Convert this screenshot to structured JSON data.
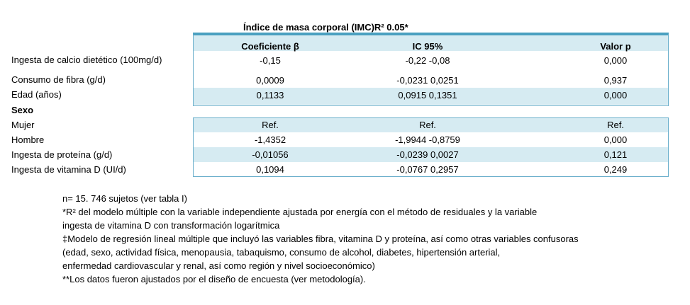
{
  "title": "Índice de masa corporal (IMC)R² 0.05*",
  "headers": [
    "Coeficiente β",
    "IC 95%",
    "Valor p"
  ],
  "rows": [
    {
      "label": "Ingesta de calcio dietético (100mg/d)",
      "coef": "-0,15",
      "ic": "-0,22 -0,08",
      "p": "0,000"
    },
    {
      "label": "Consumo de fibra (g/d)",
      "coef": "0,0009",
      "ic": "-0,0231 0,0251",
      "p": "0,937"
    },
    {
      "label": "Edad (años)",
      "coef": "0,1133",
      "ic": "0,0915 0,1351",
      "p": "0,000"
    },
    {
      "label": "Sexo"
    },
    {
      "label": "Mujer",
      "coef": "Ref.",
      "ic": "Ref.",
      "p": "Ref."
    },
    {
      "label": "Hombre",
      "coef": "-1,4352",
      "ic": "-1,9944 -0,8759",
      "p": "0,000"
    },
    {
      "label": "Ingesta de proteína (g/d)",
      "coef": "-0,01056",
      "ic": "-0,0239 0,0027",
      "p": "0,121"
    },
    {
      "label": "Ingesta de vitamina D (UI/d)",
      "coef": "0,1094",
      "ic": "-0,0767 0,2957",
      "p": "0,249"
    }
  ],
  "notes": [
    "n= 15. 746 sujetos (ver tabla I)",
    "*R² del modelo múltiple con la variable independiente ajustada por energía con el método de residuales y la variable",
    "ingesta de vitamina D con transformación logarítmica",
    "‡Modelo de regresión lineal múltiple que incluyó las variables fibra, vitamina D y proteína, así como otras variables confusoras",
    "(edad, sexo, actividad física, menopausia, tabaquismo, consumo de alcohol, diabetes, hipertensión arterial,",
    "enfermedad cardiovascular y renal, así como región y nivel socioeconómico)",
    "**Los datos fueron ajustados por el diseño de encuesta (ver metodología)."
  ]
}
